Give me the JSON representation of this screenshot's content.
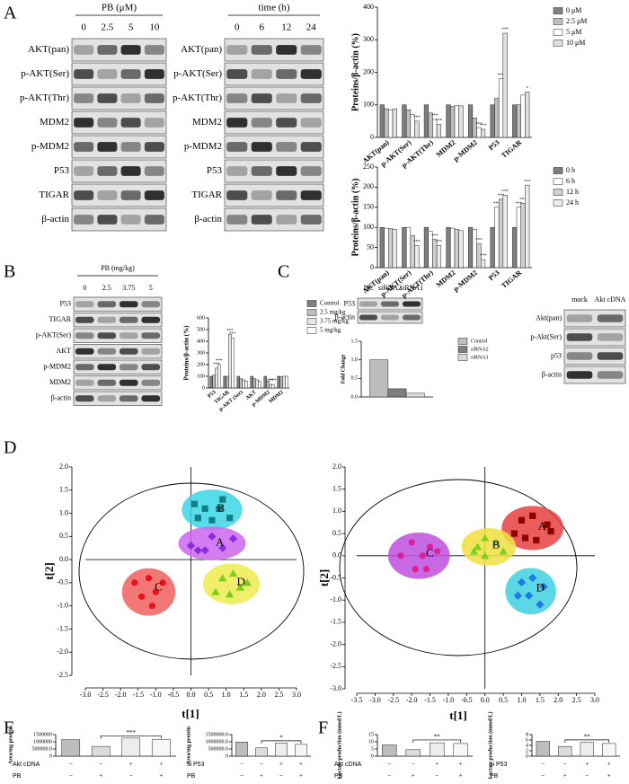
{
  "panel_labels": [
    "A",
    "B",
    "C",
    "D",
    "E",
    "F"
  ],
  "blots": [
    {
      "header": "PB (μM)",
      "lanes": [
        "0",
        "2.5",
        "5",
        "10"
      ],
      "rows": [
        "AKT(pan)",
        "p-AKT(Ser)",
        "p-AKT(Thr)",
        "MDM2",
        "p-MDM2",
        "P53",
        "TIGAR",
        "β-actin"
      ]
    },
    {
      "header": "time (h)",
      "lanes": [
        "0",
        "6",
        "12",
        "24"
      ],
      "rows": [
        "AKT(pan)",
        "p-AKT(Ser)",
        "p-AKT(Thr)",
        "MDM2",
        "p-MDM2",
        "P53",
        "TIGAR",
        "β-actin"
      ]
    },
    {
      "header": "PB (mg/kg)",
      "lanes": [
        "0",
        "2.5",
        "3.75",
        "5"
      ],
      "rows": [
        "P53",
        "TIGAR",
        "p-AKT(Ser)",
        "AKT",
        "p-MDM2",
        "MDM2",
        "β-actin"
      ]
    },
    {
      "lanes": [
        "NC",
        "siRNA2",
        "siRNA1"
      ],
      "rows": [
        "P53",
        "β-actin"
      ]
    },
    {
      "lanes": [
        "mock",
        "Akt cDNA"
      ],
      "rows": [
        "Akt(pan)",
        "p-Akt(Ser)",
        "p53",
        "β-actin"
      ]
    }
  ],
  "chart_data": [
    {
      "type": "bar",
      "y_label": "Proteins/β-actin (%)",
      "categories": [
        "AKT(pan)",
        "p-AKT(Ser)",
        "p-AKT(Thr)",
        "MDM2",
        "p-MDM2",
        "P53",
        "TIGAR"
      ],
      "series": [
        {
          "name": "0 μM",
          "color": "#7f7f7f",
          "values": [
            100,
            100,
            100,
            100,
            100,
            100,
            100
          ]
        },
        {
          "name": "2.5 μM",
          "color": "#bfbfbf",
          "values": [
            88,
            85,
            75,
            95,
            60,
            120,
            100
          ]
        },
        {
          "name": "5 μM",
          "color": "#ffffff",
          "values": [
            85,
            70,
            55,
            98,
            30,
            180,
            130
          ],
          "stars": [
            null,
            null,
            "***",
            null,
            "***",
            "***",
            null
          ]
        },
        {
          "name": "10 μM",
          "color": "#e0e0e0",
          "values": [
            88,
            50,
            40,
            97,
            25,
            320,
            140
          ],
          "stars": [
            null,
            "***",
            "***",
            null,
            "***",
            "***",
            "*"
          ]
        }
      ],
      "ylim": [
        0,
        400
      ],
      "yticks": [
        0,
        100,
        200,
        300,
        400
      ]
    },
    {
      "type": "bar",
      "y_label": "Proteins/β-actin (%)",
      "categories": [
        "AKT(pan)",
        "p-AKT(Ser)",
        "p-AKT(Thr)",
        "MDM2",
        "p-MDM2",
        "P53",
        "TIGAR"
      ],
      "series": [
        {
          "name": "0 h",
          "color": "#7f7f7f",
          "values": [
            100,
            100,
            100,
            100,
            100,
            100,
            100
          ]
        },
        {
          "name": "6 h",
          "color": "#ffffff",
          "values": [
            98,
            100,
            90,
            98,
            95,
            150,
            150
          ],
          "stars": [
            null,
            null,
            null,
            null,
            null,
            "***",
            "***"
          ]
        },
        {
          "name": "12 h",
          "color": "#d0d0d0",
          "values": [
            97,
            80,
            70,
            95,
            60,
            170,
            160
          ],
          "stars": [
            null,
            null,
            "***",
            null,
            "***",
            "***",
            "***"
          ]
        },
        {
          "name": "24 h",
          "color": "#ececec",
          "values": [
            95,
            55,
            55,
            92,
            20,
            180,
            205
          ],
          "stars": [
            null,
            "***",
            "***",
            null,
            "***",
            "***",
            "***"
          ]
        }
      ],
      "ylim": [
        0,
        250
      ],
      "yticks": [
        0,
        50,
        100,
        150,
        200,
        250
      ]
    },
    {
      "type": "bar",
      "y_label": "Proteins/β-actin (%)",
      "categories": [
        "P53",
        "TIGAR",
        "p-AKT (Ser)",
        "AKT",
        "p-MDM2",
        "MDM2"
      ],
      "series": [
        {
          "name": "Control",
          "color": "#7f7f7f",
          "values": [
            100,
            100,
            100,
            100,
            100,
            100
          ]
        },
        {
          "name": "2.5 mg/kg",
          "color": "#bfbfbf",
          "values": [
            110,
            100,
            80,
            80,
            60,
            95
          ]
        },
        {
          "name": "3.75 mg/kg",
          "color": "#e8e8e8",
          "values": [
            170,
            460,
            70,
            70,
            30,
            100
          ],
          "stars": [
            "***",
            "***",
            null,
            null,
            "***",
            null
          ]
        },
        {
          "name": "5 mg/kg",
          "color": "#ffffff",
          "values": [
            200,
            430,
            60,
            60,
            30,
            100
          ],
          "stars": [
            "***",
            "***",
            null,
            null,
            "***",
            null
          ]
        }
      ],
      "ylim": [
        0,
        600
      ],
      "yticks": [
        0,
        100,
        200,
        300,
        400,
        500,
        600
      ]
    },
    {
      "type": "bar",
      "y_label": "Fold Change",
      "categories": [
        null
      ],
      "series": [
        {
          "name": "Control",
          "color": "#bdbdbd",
          "values": [
            1.0
          ]
        },
        {
          "name": "siRNA2",
          "color": "#7f7f7f",
          "values": [
            0.22
          ]
        },
        {
          "name": "siRNA1",
          "color": "#dcdcdc",
          "values": [
            0.1
          ]
        }
      ],
      "ylim": [
        0,
        1.5
      ],
      "yticks": [
        {
          "value": 0,
          "label": "0.0"
        },
        0.5,
        {
          "value": 1,
          "label": "1.0"
        },
        1.5
      ]
    },
    {
      "type": "scatter",
      "x_label": "t[1]",
      "y_label": "t[2]",
      "xlim": [
        -3,
        3
      ],
      "ylim": [
        -2.5,
        2
      ],
      "xticks": [
        {
          "value": -3,
          "label": "-3.0"
        },
        -2.5,
        {
          "value": -2,
          "label": "-2.0"
        },
        -1.5,
        {
          "value": -1,
          "label": "-1.0"
        },
        -0.5,
        {
          "value": 0,
          "label": "0.0"
        },
        0.5,
        {
          "value": 1,
          "label": "1.0"
        },
        1.5,
        {
          "value": 2,
          "label": "2.0"
        },
        2.5,
        {
          "value": 3,
          "label": "3.0"
        }
      ],
      "yticks": [
        -2.5,
        {
          "value": -2,
          "label": "-2.0"
        },
        -1.5,
        {
          "value": -1,
          "label": "-1.0"
        },
        -0.5,
        {
          "value": 0,
          "label": "0.0"
        },
        0.5,
        {
          "value": 1,
          "label": "1.0"
        },
        1.5,
        {
          "value": 2,
          "label": "2.0"
        }
      ],
      "series": [
        {
          "name": "B",
          "color": "#127f86",
          "fill": "#3cd6e6",
          "marker": "square",
          "x": [
            0.1,
            0.4,
            0.8,
            0.9,
            0.2,
            0.6,
            1.1
          ],
          "y": [
            1.2,
            1.1,
            1.1,
            1.3,
            0.9,
            0.85,
            0.9
          ]
        },
        {
          "name": "A",
          "color": "#8a2be2",
          "fill": "#cc66ee",
          "marker": "diamond",
          "x": [
            0.0,
            0.2,
            0.4,
            0.6,
            0.9,
            1.2
          ],
          "y": [
            0.3,
            0.2,
            0.2,
            0.5,
            0.25,
            0.45
          ]
        },
        {
          "name": "C",
          "color": "#e8121c",
          "fill": "#f06060",
          "marker": "circle",
          "x": [
            -1.6,
            -1.2,
            -1.0,
            -1.4,
            -0.8,
            -1.1
          ],
          "y": [
            -0.5,
            -0.4,
            -0.7,
            -0.8,
            -0.5,
            -1.0
          ]
        },
        {
          "name": "D",
          "color": "#7ccc20",
          "fill": "#ecec50",
          "marker": "triangle",
          "x": [
            0.9,
            1.2,
            0.7,
            1.1,
            1.4,
            1.6
          ],
          "y": [
            -0.4,
            -0.3,
            -0.7,
            -0.75,
            -0.6,
            -0.5
          ]
        }
      ]
    },
    {
      "type": "scatter",
      "x_label": "t[1]",
      "y_label": "t[2]",
      "xlim": [
        -3.5,
        3
      ],
      "ylim": [
        -3,
        2
      ],
      "xticks": [
        -3.5,
        {
          "value": -3,
          "label": "-3.0"
        },
        -2.5,
        {
          "value": -2,
          "label": "-2.0"
        },
        -1.5,
        {
          "value": -1,
          "label": "-1.0"
        },
        -0.5,
        {
          "value": 0,
          "label": "0.0"
        },
        0.5,
        {
          "value": 1,
          "label": "1.0"
        },
        1.5,
        {
          "value": 2,
          "label": "2.0"
        },
        2.5,
        {
          "value": 3,
          "label": "3.0"
        }
      ],
      "yticks": [
        {
          "value": -3,
          "label": "-3.0"
        },
        -2.5,
        {
          "value": -2,
          "label": "-2.0"
        },
        -1.5,
        {
          "value": -1,
          "label": "-1.0"
        },
        -0.5,
        {
          "value": 0,
          "label": "0.0"
        },
        0.5,
        {
          "value": 1,
          "label": "1.0"
        },
        1.5,
        {
          "value": 2,
          "label": "2.0"
        }
      ],
      "series": [
        {
          "name": "A",
          "color": "#8b0000",
          "fill": "#e84040",
          "marker": "square",
          "x": [
            1.0,
            1.3,
            1.7,
            1.1,
            1.4,
            1.8,
            0.8
          ],
          "y": [
            0.8,
            0.9,
            0.7,
            0.4,
            0.35,
            0.55,
            0.5
          ]
        },
        {
          "name": "B",
          "color": "#80d020",
          "fill": "#f0e040",
          "marker": "triangle",
          "x": [
            0.0,
            -0.2,
            0.3,
            0.0,
            0.5,
            -0.3
          ],
          "y": [
            0.4,
            0.2,
            0.3,
            0.0,
            0.1,
            0.1
          ]
        },
        {
          "name": "C",
          "color": "#e0209a",
          "fill": "#c050e0",
          "marker": "circle",
          "x": [
            -2.3,
            -2.0,
            -1.7,
            -1.5,
            -1.3,
            -1.9,
            -1.6
          ],
          "y": [
            0.0,
            0.3,
            0.0,
            0.2,
            0.1,
            -0.3,
            -0.3
          ]
        },
        {
          "name": "D",
          "color": "#1e78e8",
          "fill": "#40d0e0",
          "marker": "diamond",
          "x": [
            1.0,
            1.3,
            1.6,
            1.2,
            1.5,
            0.9
          ],
          "y": [
            -0.6,
            -0.5,
            -0.7,
            -0.9,
            -1.1,
            -0.9
          ]
        }
      ]
    },
    {
      "type": "bar",
      "y_label": "Area/mg protein",
      "values": [
        1150000,
        680000,
        1260000,
        1160000
      ],
      "colors": [
        "#bdbdbd",
        "#dcdcdc",
        "#ededed",
        "#f7f7f7"
      ],
      "ylim": [
        0,
        1500000
      ],
      "yticks": [
        0,
        {
          "value": 500000,
          "label": "500000.0"
        },
        1000000,
        1500000
      ],
      "significance": "***",
      "conditions": [
        {
          "name": "Akt cDNA",
          "values": [
            "–",
            "–",
            "+",
            "+"
          ]
        },
        {
          "name": "PB",
          "values": [
            "–",
            "+",
            "–",
            "+"
          ]
        }
      ]
    },
    {
      "type": "bar",
      "y_label": "Area/mg protein",
      "values": [
        980000,
        580000,
        920000,
        820000
      ],
      "colors": [
        "#bdbdbd",
        "#dcdcdc",
        "#ededed",
        "#f7f7f7"
      ],
      "ylim": [
        0,
        1500000
      ],
      "yticks": [
        0,
        {
          "value": 500000,
          "label": "500000.0"
        },
        {
          "value": 1000000,
          "label": "1000000.0"
        },
        {
          "value": 1500000,
          "label": "1500000.0"
        }
      ],
      "significance": "*",
      "conditions": [
        {
          "name": "si P53",
          "values": [
            "–",
            "–",
            "+",
            "+"
          ]
        },
        {
          "name": "PB",
          "values": [
            "–",
            "+",
            "–",
            "+"
          ]
        }
      ]
    },
    {
      "type": "bar",
      "y_label": "Lactate production (mmol/L)",
      "values": [
        7.8,
        4.5,
        9.3,
        8.8
      ],
      "colors": [
        "#bdbdbd",
        "#dcdcdc",
        "#ededed",
        "#f7f7f7"
      ],
      "ylim": [
        0,
        15
      ],
      "yticks": [
        0,
        5,
        10,
        15
      ],
      "significance": "**",
      "conditions": [
        {
          "name": "Akt cDNA",
          "values": [
            "–",
            "–",
            "+",
            "+"
          ]
        },
        {
          "name": "PB",
          "values": [
            "–",
            "+",
            "–",
            "+"
          ]
        }
      ]
    },
    {
      "type": "bar",
      "y_label": "Lactate production (mmol/L)",
      "values": [
        5.5,
        3.6,
        5.1,
        4.7
      ],
      "colors": [
        "#bdbdbd",
        "#dcdcdc",
        "#ededed",
        "#f7f7f7"
      ],
      "ylim": [
        0,
        8
      ],
      "yticks": [
        0,
        2,
        4,
        6,
        8
      ],
      "significance": "**",
      "conditions": [
        {
          "name": "si P53",
          "values": [
            "–",
            "–",
            "+",
            "+"
          ]
        },
        {
          "name": "PB",
          "values": [
            "–",
            "+",
            "–",
            "+"
          ]
        }
      ]
    }
  ]
}
